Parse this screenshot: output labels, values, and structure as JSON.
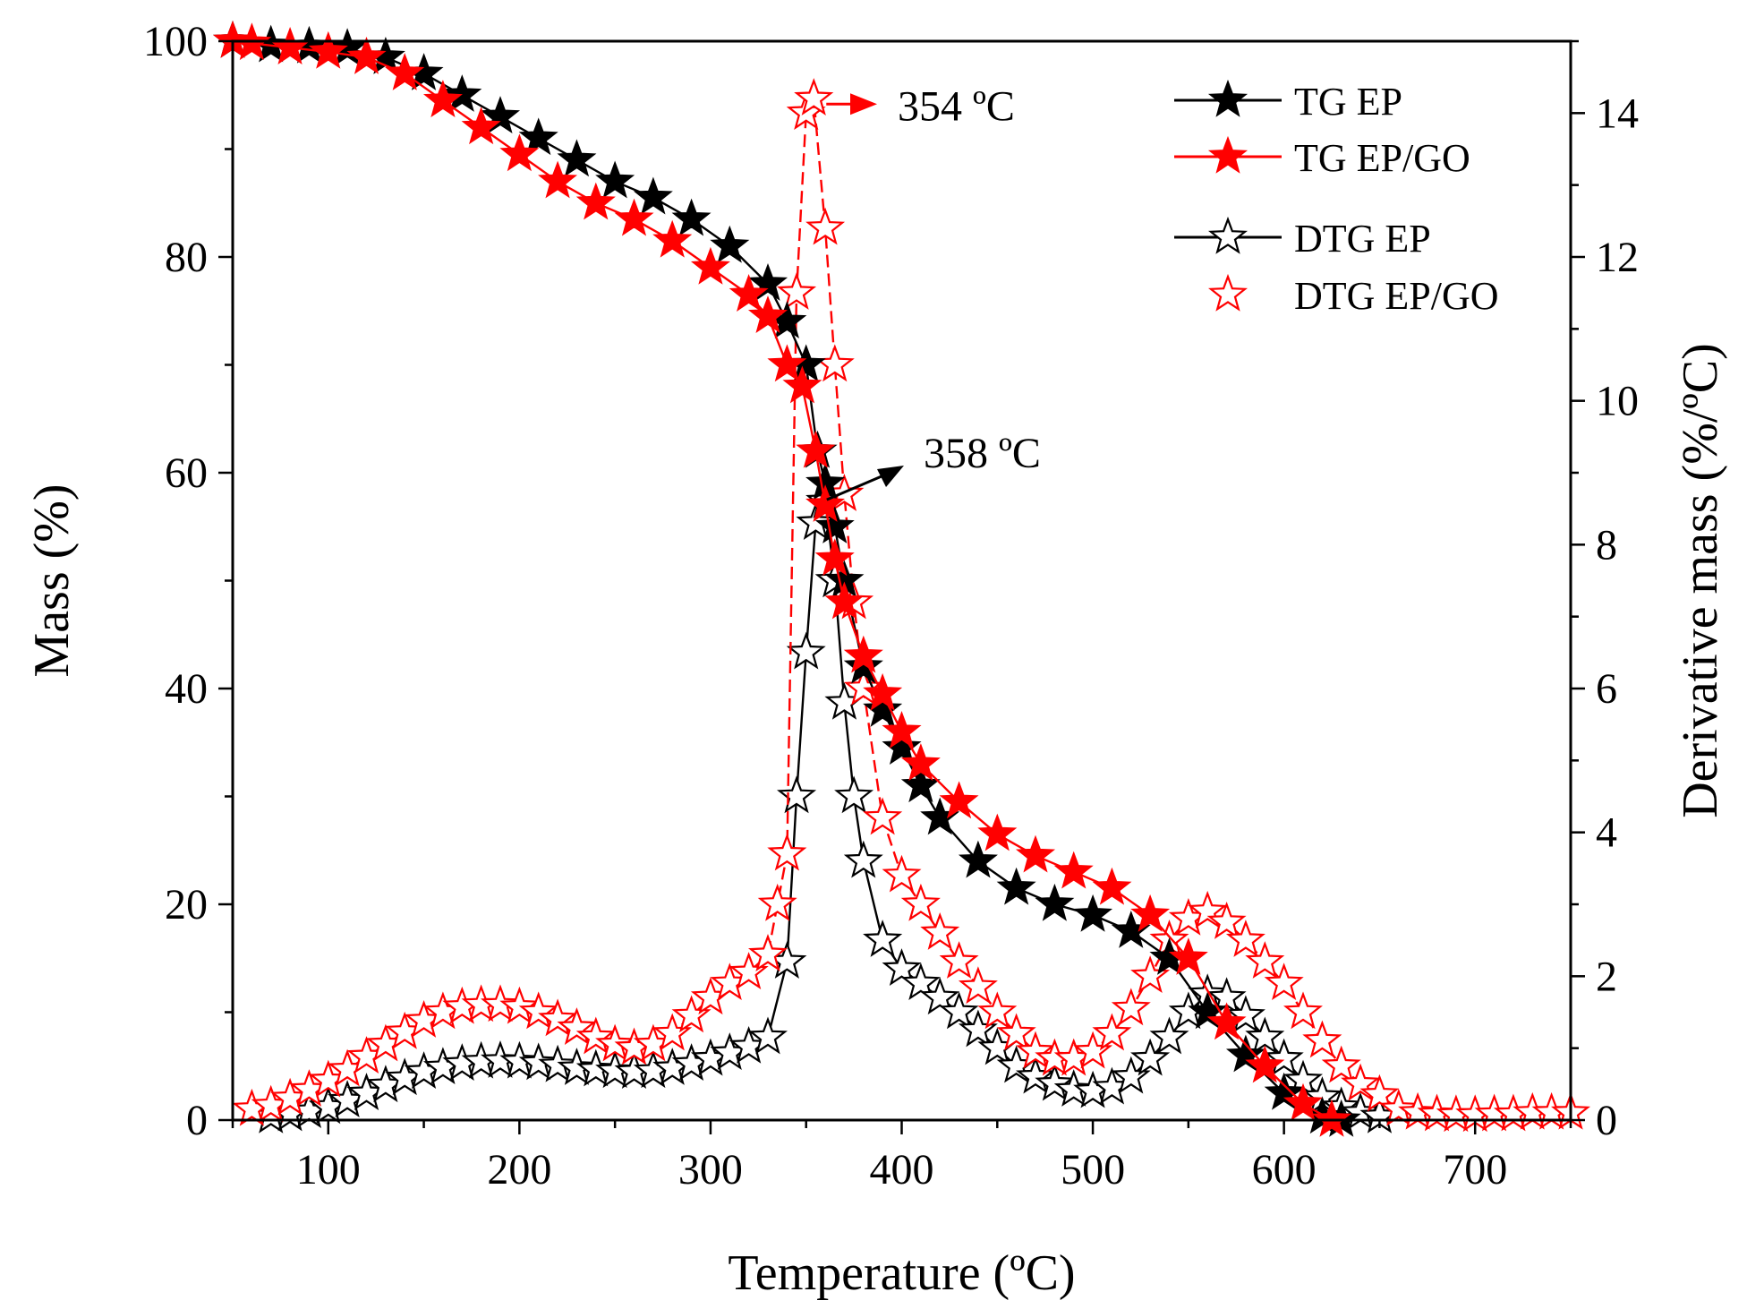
{
  "chart_data": {
    "type": "line",
    "title": "",
    "xlabel": "Temperature (ºC)",
    "ylabel": "Mass (%)",
    "y2label": "Derivative mass (%/ºC)",
    "xlim": [
      50,
      750
    ],
    "ylim": [
      0,
      100
    ],
    "y2lim": [
      0,
      15
    ],
    "x_ticks": [
      100,
      200,
      300,
      400,
      500,
      600,
      700
    ],
    "y_ticks": [
      0,
      20,
      40,
      60,
      80,
      100
    ],
    "y2_ticks": [
      0,
      2,
      4,
      6,
      8,
      10,
      12,
      14
    ],
    "legend_position": "top-right",
    "series": [
      {
        "name": "TG EP",
        "axis": "left",
        "color": "#000000",
        "marker": "filled-star",
        "dash": "solid",
        "x": [
          50,
          70,
          90,
          110,
          130,
          150,
          170,
          190,
          210,
          230,
          250,
          270,
          290,
          310,
          330,
          340,
          350,
          356,
          360,
          365,
          370,
          380,
          390,
          400,
          410,
          420,
          440,
          460,
          480,
          500,
          520,
          540,
          560,
          580,
          600,
          620,
          630
        ],
        "y": [
          100,
          99.6,
          99.5,
          99.3,
          98.5,
          97,
          95,
          93,
          91,
          89,
          87,
          85.5,
          83.5,
          81,
          77.5,
          74,
          70,
          62,
          59,
          55,
          50,
          42,
          38,
          34.5,
          31,
          28,
          24,
          21.5,
          20,
          19,
          17.5,
          15,
          10,
          6,
          2.5,
          0.3,
          0
        ]
      },
      {
        "name": "TG EP/GO",
        "axis": "left",
        "color": "#ff0000",
        "marker": "filled-star",
        "dash": "solid",
        "x": [
          50,
          60,
          80,
          100,
          120,
          140,
          160,
          180,
          200,
          220,
          240,
          260,
          280,
          300,
          320,
          330,
          340,
          348,
          355,
          360,
          365,
          370,
          380,
          390,
          400,
          410,
          430,
          450,
          470,
          490,
          510,
          530,
          550,
          570,
          590,
          610,
          625
        ],
        "y": [
          100,
          99.8,
          99.4,
          99,
          98.5,
          97,
          94.5,
          92,
          89.5,
          87,
          85,
          83.5,
          81.5,
          79,
          76.5,
          74.5,
          70,
          68,
          62,
          57,
          52,
          48,
          43,
          39.5,
          36,
          33,
          29.5,
          26.5,
          24.5,
          23,
          21.5,
          19,
          15,
          9,
          5,
          1.5,
          0
        ]
      },
      {
        "name": "DTG EP",
        "axis": "right",
        "color": "#000000",
        "marker": "open-star",
        "dash": "solid",
        "x": [
          70,
          80,
          90,
          100,
          110,
          120,
          130,
          140,
          150,
          160,
          170,
          180,
          190,
          200,
          210,
          220,
          230,
          240,
          250,
          260,
          270,
          280,
          290,
          300,
          310,
          320,
          330,
          340,
          345,
          350,
          355,
          360,
          365,
          370,
          375,
          380,
          390,
          400,
          410,
          420,
          430,
          440,
          450,
          460,
          470,
          480,
          490,
          500,
          510,
          520,
          530,
          540,
          550,
          560,
          570,
          580,
          590,
          600,
          610,
          620,
          630,
          640,
          650
        ],
        "y": [
          0.05,
          0.08,
          0.12,
          0.18,
          0.27,
          0.37,
          0.48,
          0.58,
          0.67,
          0.73,
          0.78,
          0.81,
          0.82,
          0.81,
          0.79,
          0.76,
          0.72,
          0.7,
          0.68,
          0.67,
          0.68,
          0.72,
          0.78,
          0.85,
          0.93,
          1.02,
          1.15,
          2.2,
          4.5,
          6.5,
          8.3,
          8.6,
          7.5,
          5.8,
          4.5,
          3.6,
          2.5,
          2.1,
          1.9,
          1.7,
          1.5,
          1.25,
          1.0,
          0.75,
          0.6,
          0.5,
          0.42,
          0.4,
          0.45,
          0.6,
          0.85,
          1.15,
          1.5,
          1.75,
          1.7,
          1.45,
          1.15,
          0.85,
          0.55,
          0.32,
          0.18,
          0.1,
          0.05
        ]
      },
      {
        "name": "DTG EP/GO",
        "axis": "right",
        "color": "#ff0000",
        "marker": "open-star",
        "dash": "dashed",
        "x": [
          60,
          70,
          80,
          90,
          100,
          110,
          120,
          130,
          140,
          150,
          160,
          170,
          180,
          190,
          200,
          210,
          220,
          230,
          240,
          250,
          260,
          270,
          280,
          290,
          300,
          310,
          320,
          330,
          335,
          340,
          345,
          350,
          354,
          360,
          365,
          370,
          375,
          380,
          390,
          400,
          410,
          420,
          430,
          440,
          450,
          460,
          470,
          480,
          490,
          500,
          510,
          520,
          530,
          540,
          550,
          560,
          570,
          580,
          590,
          600,
          610,
          620,
          630,
          640,
          650,
          660,
          670,
          680,
          690,
          700,
          710,
          720,
          730,
          740,
          750
        ],
        "y": [
          0.15,
          0.2,
          0.3,
          0.42,
          0.55,
          0.7,
          0.88,
          1.05,
          1.22,
          1.38,
          1.5,
          1.57,
          1.6,
          1.6,
          1.57,
          1.5,
          1.4,
          1.28,
          1.15,
          1.05,
          1.0,
          1.05,
          1.2,
          1.45,
          1.7,
          1.9,
          2.05,
          2.3,
          3.0,
          3.7,
          11.5,
          14.0,
          14.2,
          12.4,
          10.5,
          8.7,
          7.2,
          6.0,
          4.2,
          3.4,
          3.0,
          2.6,
          2.2,
          1.85,
          1.5,
          1.2,
          0.95,
          0.85,
          0.85,
          0.95,
          1.2,
          1.55,
          2.0,
          2.5,
          2.8,
          2.9,
          2.75,
          2.5,
          2.2,
          1.9,
          1.5,
          1.1,
          0.75,
          0.5,
          0.35,
          0.15,
          0.1,
          0.08,
          0.07,
          0.07,
          0.08,
          0.08,
          0.1,
          0.1,
          0.1
        ]
      }
    ],
    "annotations": [
      {
        "text": "354 ºC",
        "x": 354,
        "y2": 14.2,
        "color": "#ff0000",
        "arrow": "right"
      },
      {
        "text": "358 ºC",
        "x": 358,
        "y2": 8.6,
        "color": "#000000",
        "arrow": "up-right"
      }
    ]
  }
}
